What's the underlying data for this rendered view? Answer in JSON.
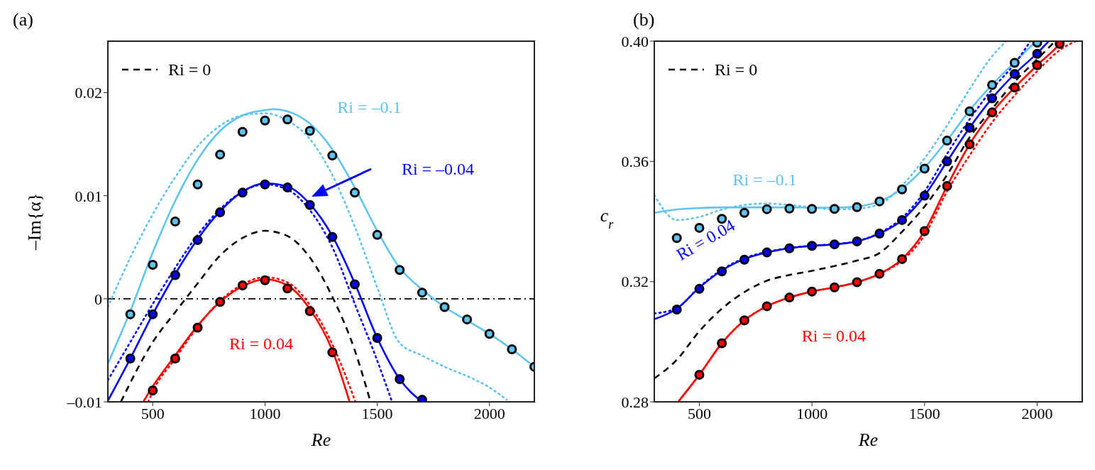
{
  "chart_data": [
    {
      "type": "line",
      "title": "(a)",
      "xlabel": "Re",
      "ylabel": "–Im{α}",
      "xlim": [
        300,
        2200
      ],
      "xticks": [
        500,
        1000,
        1500,
        2000
      ],
      "ylim": [
        -0.01,
        0.025
      ],
      "yticks": [
        {
          "value": -0.01,
          "label": "–0.01"
        },
        0,
        0.01,
        0.02
      ],
      "legend": "top left",
      "ref_lines": [
        {
          "axis": "y",
          "value": 0,
          "color": "#000000",
          "line_style": "dashdot"
        }
      ],
      "annotations": [
        {
          "text": "Ri = –0.1",
          "x": 1300,
          "y": 0.0145
        },
        "Ri = –0.04",
        "Ri = 0.04"
      ],
      "series": [
        {
          "type": "scatter",
          "marker": "circle",
          "color": "#5ec5f2",
          "x": [
            400,
            500,
            600,
            700,
            800,
            900,
            1000,
            1100,
            1200,
            1300,
            1400,
            1500,
            1600,
            1700,
            1800,
            1900,
            2000,
            2100,
            2200
          ],
          "values": [
            -0.0015,
            0.0033,
            0.0075,
            0.0111,
            0.014,
            0.0162,
            0.0173,
            0.0174,
            0.0163,
            0.0139,
            0.0103,
            0.0062,
            0.0028,
            0.0006,
            -0.0008,
            -0.002,
            -0.0034,
            -0.0049,
            -0.0066
          ]
        },
        {
          "type": "scatter",
          "marker": "circle",
          "color": "#0000ff",
          "x": [
            400,
            500,
            600,
            700,
            800,
            900,
            1000,
            1100,
            1200,
            1300,
            1400,
            1500,
            1600,
            1700
          ],
          "values": [
            -0.0058,
            -0.0015,
            0.0023,
            0.0057,
            0.0084,
            0.0103,
            0.0111,
            0.0108,
            0.0091,
            0.006,
            0.0014,
            -0.0038,
            -0.0078,
            -0.0098
          ]
        },
        {
          "type": "scatter",
          "marker": "circle",
          "color": "#ff0000",
          "x": [
            500,
            600,
            700,
            800,
            900,
            1000,
            1100,
            1200,
            1300
          ],
          "values": [
            -0.0089,
            -0.0058,
            -0.0028,
            -0.0003,
            0.0013,
            0.0018,
            0.001,
            -0.0012,
            -0.0052
          ]
        },
        {
          "type": "line",
          "name": "Ri = 0",
          "line_style": "dashed",
          "color": "#000000",
          "x": [
            358,
            500,
            600,
            700,
            800,
            900,
            1000,
            1100,
            1200,
            1300,
            1400,
            1470
          ],
          "values": [
            -0.01,
            -0.0042,
            -0.0013,
            0.0015,
            0.0042,
            0.0059,
            0.0066,
            0.0061,
            0.004,
            0.0002,
            -0.005,
            -0.01
          ]
        },
        {
          "type": "line",
          "line_style": "dotted",
          "color": "#5ec5f2",
          "x": [
            300,
            400,
            500,
            600,
            700,
            800,
            900,
            1000,
            1100,
            1200,
            1300,
            1400,
            1500,
            1600,
            1700,
            1800,
            1900,
            2000,
            2077
          ],
          "values": [
            -0.0008,
            0.004,
            0.0082,
            0.0118,
            0.0148,
            0.0168,
            0.0178,
            0.018,
            0.0173,
            0.0155,
            0.012,
            0.007,
            0.0011,
            -0.0043,
            -0.0055,
            -0.0066,
            -0.0075,
            -0.0086,
            -0.0098
          ]
        },
        {
          "type": "line",
          "line_style": "solid",
          "color": "#5ec5f2",
          "x": [
            300,
            400,
            500,
            600,
            700,
            800,
            900,
            1000,
            1036,
            1100,
            1200,
            1300,
            1400,
            1500,
            1600,
            1700,
            1800,
            1900,
            2000,
            2100,
            2200
          ],
          "values": [
            -0.0063,
            -0.0012,
            0.0045,
            0.0095,
            0.0135,
            0.0163,
            0.0178,
            0.0183,
            0.0184,
            0.0182,
            0.017,
            0.0145,
            0.0108,
            0.0066,
            0.003,
            0.0009,
            -0.0008,
            -0.0021,
            -0.0034,
            -0.0049,
            -0.0066
          ]
        },
        {
          "type": "line",
          "line_style": "dotted",
          "color": "#0000ff",
          "x": [
            300,
            400,
            500,
            600,
            700,
            800,
            900,
            1000,
            1100,
            1200,
            1300,
            1400,
            1500,
            1566
          ],
          "values": [
            -0.0079,
            -0.0042,
            -0.0005,
            0.003,
            0.0062,
            0.0087,
            0.0104,
            0.0111,
            0.0106,
            0.0086,
            0.005,
            -0.0005,
            -0.006,
            -0.01
          ]
        },
        {
          "type": "line",
          "line_style": "solid",
          "color": "#0000ff",
          "x": [
            300,
            400,
            500,
            600,
            700,
            800,
            900,
            1000,
            1100,
            1200,
            1300,
            1400,
            1500,
            1600,
            1700
          ],
          "values": [
            -0.0099,
            -0.0058,
            -0.0015,
            0.0024,
            0.0058,
            0.0085,
            0.0104,
            0.0112,
            0.0109,
            0.0092,
            0.0061,
            0.0015,
            -0.0038,
            -0.0078,
            -0.01
          ]
        },
        {
          "type": "line",
          "line_style": "dotted",
          "color": "#ff0000",
          "x": [
            480,
            500,
            600,
            700,
            800,
            900,
            1000,
            1100,
            1200,
            1300,
            1403
          ],
          "values": [
            -0.01,
            -0.009,
            -0.0058,
            -0.0027,
            -0.0002,
            0.0014,
            0.0021,
            0.0016,
            -0.0006,
            -0.0044,
            -0.01
          ]
        },
        {
          "type": "line",
          "line_style": "solid",
          "color": "#ff0000",
          "x": [
            458,
            500,
            600,
            700,
            800,
            900,
            1000,
            1100,
            1200,
            1300,
            1377
          ],
          "values": [
            -0.01,
            -0.0085,
            -0.0055,
            -0.0026,
            -0.0003,
            0.0012,
            0.0019,
            0.0013,
            -0.001,
            -0.005,
            -0.01
          ]
        }
      ]
    },
    {
      "type": "line",
      "title": "(b)",
      "xlabel": "Re",
      "ylabel": "c$_{r}$",
      "xlim": [
        300,
        2200
      ],
      "xticks": [
        500,
        1000,
        1500,
        2000
      ],
      "ylim": [
        0.28,
        0.4
      ],
      "yticks": [
        0.28,
        0.32,
        0.36,
        {
          "value": 0.4,
          "label": "0.40"
        }
      ],
      "legend": "top left",
      "annotations": [
        {
          "text": "Ri = –0.1",
          "x": 800,
          "y": 0.3447
        },
        {
          "text": "Ri = 0.04",
          "x": 500,
          "y": 0.318
        },
        {
          "text": "Ri = 0.04",
          "x": 1100,
          "y": 0.3181
        }
      ],
      "series": [
        {
          "type": "scatter",
          "marker": "circle",
          "color": "#5ec5f2",
          "x": [
            400,
            500,
            600,
            700,
            800,
            900,
            1000,
            1100,
            1200,
            1300,
            1400,
            1500,
            1600,
            1700,
            1800,
            1900,
            2000
          ],
          "values": [
            0.3345,
            0.3379,
            0.3409,
            0.3429,
            0.3441,
            0.3443,
            0.3442,
            0.3442,
            0.3448,
            0.3467,
            0.3507,
            0.3576,
            0.3669,
            0.3767,
            0.3854,
            0.3928,
            0.3995
          ]
        },
        {
          "type": "scatter",
          "marker": "circle",
          "color": "#0000ff",
          "x": [
            400,
            500,
            600,
            700,
            800,
            900,
            1000,
            1100,
            1200,
            1300,
            1400,
            1500,
            1600,
            1700,
            1800,
            1900,
            2000
          ],
          "values": [
            0.3107,
            0.3176,
            0.3234,
            0.3273,
            0.3297,
            0.3311,
            0.3319,
            0.3324,
            0.3334,
            0.336,
            0.3405,
            0.3486,
            0.36,
            0.3712,
            0.381,
            0.3891,
            0.3958
          ]
        },
        {
          "type": "scatter",
          "marker": "circle",
          "color": "#ff0000",
          "x": [
            500,
            600,
            700,
            800,
            900,
            1000,
            1100,
            1200,
            1300,
            1400,
            1500,
            1600,
            1700,
            1800,
            1900,
            2000,
            2100
          ],
          "values": [
            0.289,
            0.2995,
            0.3071,
            0.3118,
            0.3147,
            0.3167,
            0.3181,
            0.3198,
            0.3226,
            0.3275,
            0.3368,
            0.3518,
            0.3657,
            0.3763,
            0.3846,
            0.392,
            0.3991
          ]
        },
        {
          "type": "line",
          "name": "Ri = 0",
          "line_style": "dashed",
          "color": "#000000",
          "x": [
            300,
            400,
            500,
            600,
            700,
            800,
            900,
            1000,
            1100,
            1200,
            1300,
            1400,
            1500,
            1600,
            1700,
            1800,
            1900,
            2000,
            2080
          ],
          "values": [
            0.2878,
            0.294,
            0.3035,
            0.311,
            0.3165,
            0.3203,
            0.3222,
            0.3236,
            0.3252,
            0.327,
            0.3295,
            0.3366,
            0.345,
            0.3555,
            0.368,
            0.3775,
            0.3865,
            0.394,
            0.4
          ]
        },
        {
          "type": "line",
          "line_style": "dotted",
          "color": "#5ec5f2",
          "x": [
            300,
            400,
            500,
            600,
            700,
            800,
            900,
            1000,
            1100,
            1200,
            1300,
            1400,
            1500,
            1600,
            1700,
            1800,
            1862
          ],
          "values": [
            0.3488,
            0.3405,
            0.3415,
            0.344,
            0.3455,
            0.346,
            0.3455,
            0.3447,
            0.344,
            0.3443,
            0.3457,
            0.352,
            0.361,
            0.372,
            0.384,
            0.395,
            0.4
          ]
        },
        {
          "type": "line",
          "line_style": "solid",
          "color": "#5ec5f2",
          "x": [
            300,
            400,
            500,
            600,
            700,
            800,
            900,
            1000,
            1100,
            1200,
            1300,
            1400,
            1500,
            1600,
            1700,
            1800,
            1900,
            1995
          ],
          "values": [
            0.3429,
            0.344,
            0.3445,
            0.3447,
            0.3447,
            0.3447,
            0.3447,
            0.3446,
            0.3446,
            0.345,
            0.3467,
            0.351,
            0.358,
            0.367,
            0.377,
            0.3855,
            0.393,
            0.4
          ]
        },
        {
          "type": "line",
          "line_style": "dotted",
          "color": "#0000ff",
          "x": [
            300,
            400,
            500,
            600,
            700,
            800,
            900,
            1000,
            1100,
            1200,
            1300,
            1400,
            1500,
            1600,
            1700,
            1800,
            1900,
            1970
          ],
          "values": [
            0.3094,
            0.3112,
            0.3182,
            0.324,
            0.3278,
            0.3299,
            0.3312,
            0.332,
            0.3325,
            0.3335,
            0.3362,
            0.3412,
            0.35,
            0.3625,
            0.374,
            0.384,
            0.3925,
            0.4
          ]
        },
        {
          "type": "line",
          "line_style": "solid",
          "color": "#0000ff",
          "x": [
            300,
            400,
            500,
            600,
            700,
            800,
            900,
            1000,
            1100,
            1200,
            1300,
            1400,
            1500,
            1600,
            1700,
            1800,
            1900,
            2000,
            2051
          ],
          "values": [
            0.3075,
            0.311,
            0.318,
            0.3237,
            0.3275,
            0.3297,
            0.3311,
            0.3319,
            0.3324,
            0.3334,
            0.336,
            0.3405,
            0.3486,
            0.36,
            0.3712,
            0.381,
            0.3891,
            0.396,
            0.4
          ]
        },
        {
          "type": "line",
          "line_style": "dotted",
          "color": "#ff0000",
          "x": [
            409,
            500,
            600,
            700,
            800,
            900,
            1000,
            1100,
            1200,
            1300,
            1400,
            1500,
            1600,
            1700,
            1800,
            1900,
            2000,
            2100,
            2170
          ],
          "values": [
            0.2803,
            0.289,
            0.2995,
            0.3071,
            0.3118,
            0.3147,
            0.3167,
            0.3181,
            0.3198,
            0.3226,
            0.327,
            0.3355,
            0.35,
            0.362,
            0.373,
            0.382,
            0.39,
            0.397,
            0.4
          ]
        },
        {
          "type": "line",
          "line_style": "solid",
          "color": "#ff0000",
          "x": [
            409,
            500,
            600,
            700,
            800,
            900,
            1000,
            1100,
            1200,
            1300,
            1400,
            1500,
            1600,
            1700,
            1800,
            1900,
            2000,
            2100,
            2110
          ],
          "values": [
            0.2803,
            0.289,
            0.2995,
            0.3071,
            0.3118,
            0.3147,
            0.3167,
            0.3181,
            0.3198,
            0.3226,
            0.3275,
            0.3368,
            0.3518,
            0.3657,
            0.3763,
            0.3846,
            0.392,
            0.3991,
            0.4
          ]
        }
      ]
    }
  ]
}
